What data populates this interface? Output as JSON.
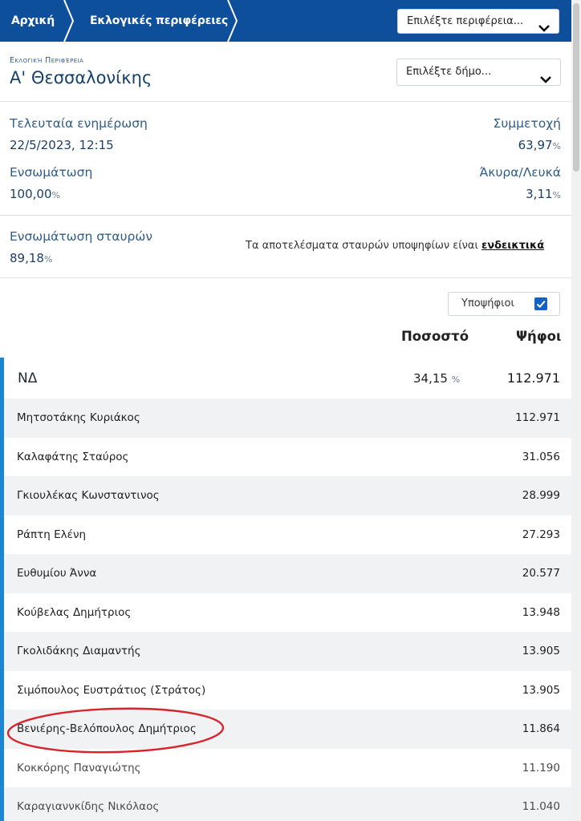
{
  "nav": {
    "home": "Αρχική",
    "regions": "Εκλογικές περιφέρειες",
    "region_select": "Επιλέξτε περιφέρεια..."
  },
  "header": {
    "label": "Εκλογική Περιφέρεια",
    "region_name": "Α' Θεσσαλονίκης",
    "municipality_select": "Επιλέξτε δήμο..."
  },
  "stats": {
    "last_update_label": "Τελευταία ενημέρωση",
    "last_update_value": "22/5/2023, 12:15",
    "turnout_label": "Συμμετοχή",
    "turnout_value": "63,97",
    "integration_label": "Ενσωμάτωση",
    "integration_value": "100,00",
    "invalid_label": "Άκυρα/Λευκά",
    "invalid_value": "3,11",
    "crosses_label": "Ενσωμάτωση σταυρών",
    "crosses_value": "89,18",
    "note_text": "Τα αποτελέσματα σταυρών υποψηφίων είναι ",
    "note_link": "ενδεικτικά",
    "pct_sign": "%"
  },
  "table": {
    "candidates_toggle": "Υποψήφιοι",
    "col_pct": "Ποσοστό",
    "col_votes": "Ψήφοι",
    "party": {
      "name": "ΝΔ",
      "pct": "34,15",
      "votes": "112.971"
    },
    "candidates": [
      {
        "name": "Μητσοτάκης Κυριάκος",
        "votes": "112.971"
      },
      {
        "name": "Καλαφάτης Σταύρος",
        "votes": "31.056"
      },
      {
        "name": "Γκιουλέκας Κωνσταντινος",
        "votes": "28.999"
      },
      {
        "name": "Ράπτη Ελένη",
        "votes": "27.293"
      },
      {
        "name": "Ευθυμίου Άννα",
        "votes": "20.577"
      },
      {
        "name": "Κούβελας Δημήτριος",
        "votes": "13.948"
      },
      {
        "name": "Γκολιδάκης Διαμαντής",
        "votes": "13.905"
      },
      {
        "name": "Σιμόπουλος Ευστράτιος (Στράτος)",
        "votes": "13.905"
      },
      {
        "name": "Βενιέρης-Βελόπουλος Δημήτριος",
        "votes": "11.864"
      },
      {
        "name": "Κοκκόρης Παναγιώτης",
        "votes": "11.190"
      },
      {
        "name": "Καραγιαννκίδης Νικόλαος",
        "votes": "11.040"
      }
    ]
  },
  "colors": {
    "nav_blue": "#0e4f9c",
    "accent_blue": "#1a86d4",
    "highlight_red": "#d6262c"
  }
}
